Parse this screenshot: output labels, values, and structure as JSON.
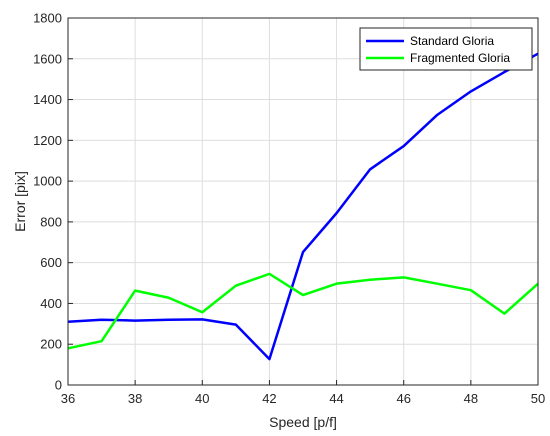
{
  "chart_data": {
    "type": "line",
    "xlabel": "Speed [p/f]",
    "ylabel": "Error [pix]",
    "xlim": [
      36,
      50
    ],
    "ylim": [
      0,
      1800
    ],
    "xticks": [
      36,
      38,
      40,
      42,
      44,
      46,
      48,
      50
    ],
    "yticks": [
      0,
      200,
      400,
      600,
      800,
      1000,
      1200,
      1400,
      1600,
      1800
    ],
    "grid": true,
    "legend_position": "top-right",
    "x": [
      36,
      37,
      38,
      39,
      40,
      41,
      42,
      43,
      44,
      45,
      46,
      47,
      48,
      49,
      50
    ],
    "series": [
      {
        "name": "Standard Gloria",
        "color": "#0000ff",
        "values": [
          310,
          320,
          316,
          320,
          322,
          296,
          127,
          652,
          843,
          1058,
          1172,
          1325,
          1440,
          1535,
          1625
        ]
      },
      {
        "name": "Fragmented Gloria",
        "color": "#00ff00",
        "values": [
          180,
          215,
          463,
          428,
          357,
          487,
          545,
          441,
          497,
          516,
          528,
          497,
          465,
          350,
          497
        ]
      }
    ]
  }
}
